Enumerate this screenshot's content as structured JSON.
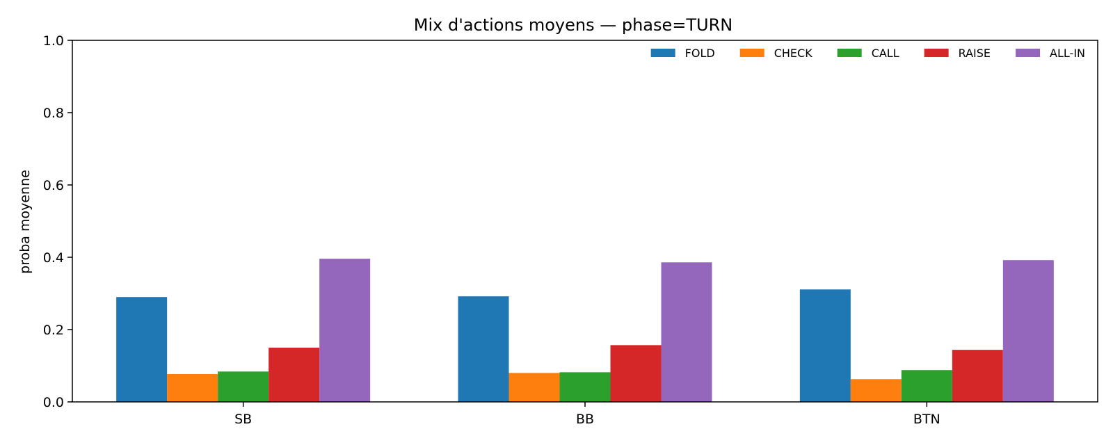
{
  "chart_data": {
    "type": "bar",
    "title": "Mix d'actions moyens — phase=TURN",
    "xlabel": "",
    "ylabel": "proba moyenne",
    "ylim": [
      0,
      1
    ],
    "yticks": [
      "0.0",
      "0.2",
      "0.4",
      "0.6",
      "0.8",
      "1.0"
    ],
    "categories": [
      "SB",
      "BB",
      "BTN"
    ],
    "series": [
      {
        "name": "FOLD",
        "color": "#1f77b4",
        "values": [
          0.29,
          0.292,
          0.311
        ]
      },
      {
        "name": "CHECK",
        "color": "#ff7f0e",
        "values": [
          0.077,
          0.08,
          0.063
        ]
      },
      {
        "name": "CALL",
        "color": "#2ca02c",
        "values": [
          0.084,
          0.082,
          0.088
        ]
      },
      {
        "name": "RAISE",
        "color": "#d62728",
        "values": [
          0.15,
          0.157,
          0.144
        ]
      },
      {
        "name": "ALL-IN",
        "color": "#9467bd",
        "values": [
          0.396,
          0.386,
          0.392
        ]
      }
    ],
    "grid": false,
    "legend": "top-right"
  }
}
